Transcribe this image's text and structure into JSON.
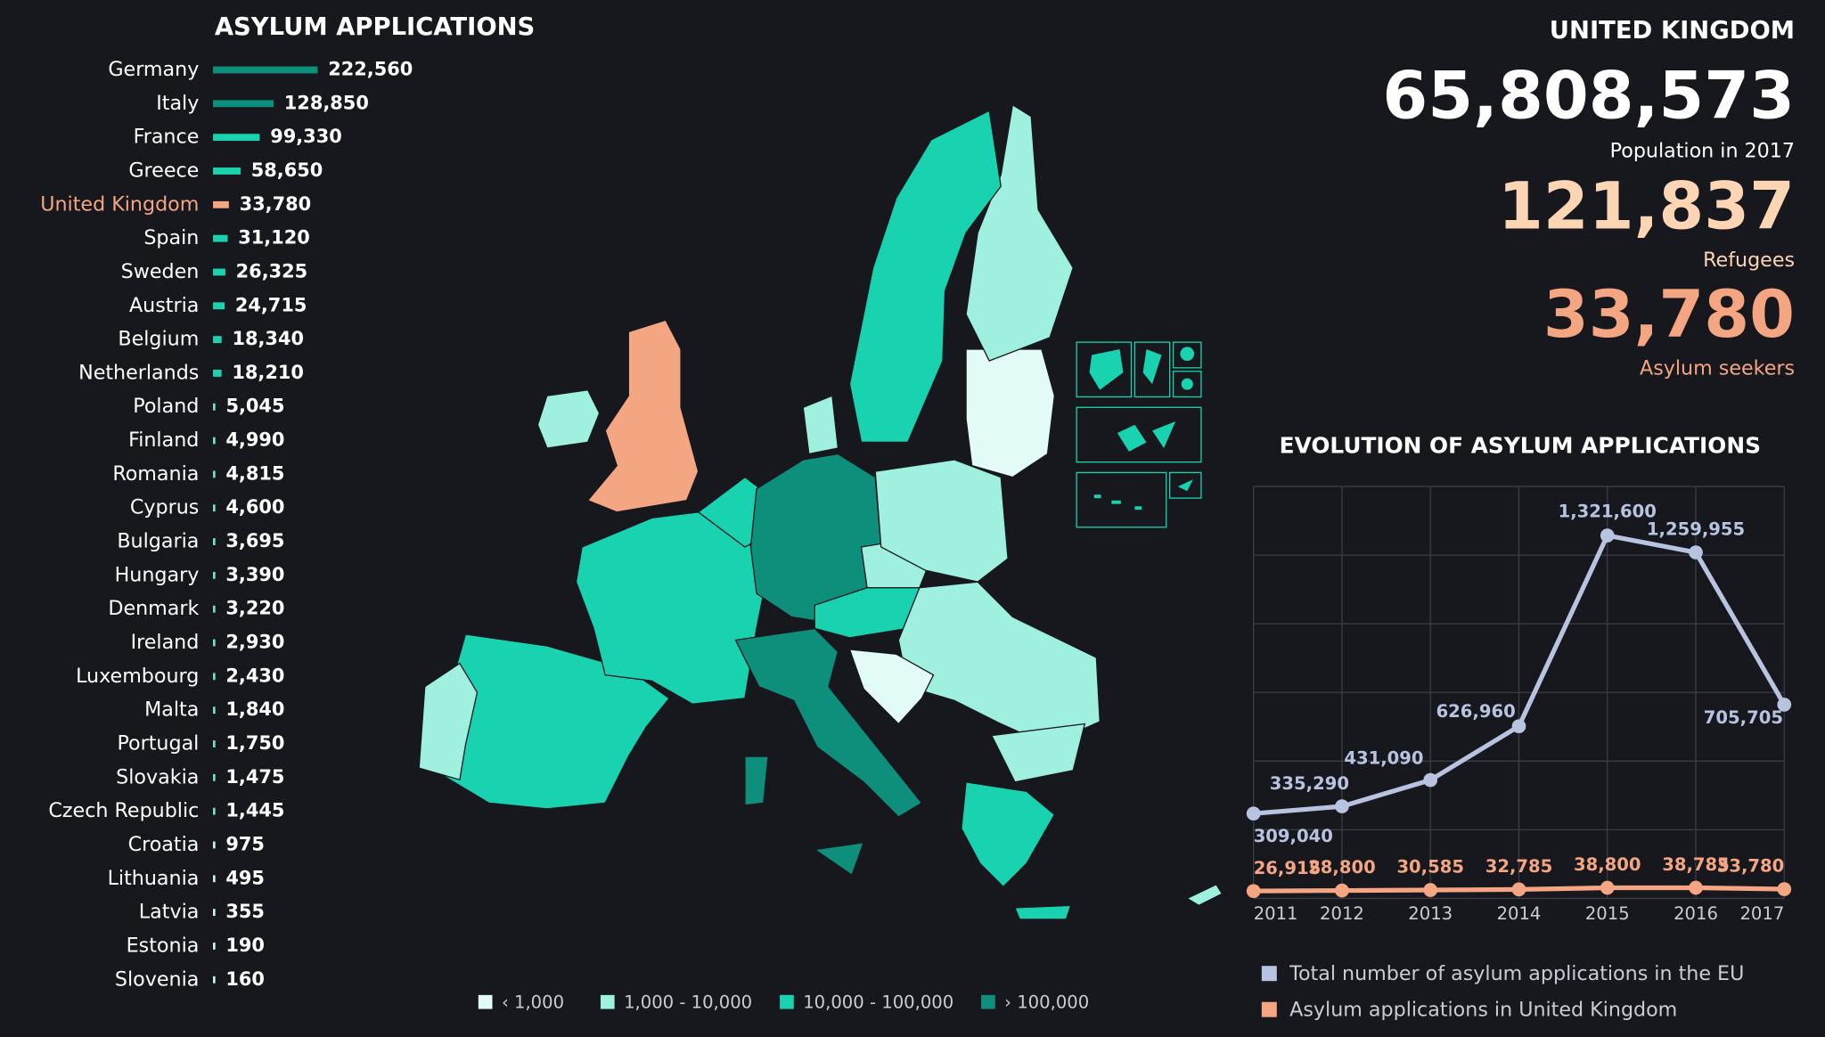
{
  "chart_data": [
    {
      "type": "bar",
      "title": "ASYLUM APPLICATIONS",
      "categories": [
        "Germany",
        "Italy",
        "France",
        "Greece",
        "United Kingdom",
        "Spain",
        "Sweden",
        "Austria",
        "Belgium",
        "Netherlands",
        "Poland",
        "Finland",
        "Romania",
        "Cyprus",
        "Bulgaria",
        "Hungary",
        "Denmark",
        "Ireland",
        "Luxembourg",
        "Malta",
        "Portugal",
        "Slovakia",
        "Czech Republic",
        "Croatia",
        "Lithuania",
        "Latvia",
        "Estonia",
        "Slovenia"
      ],
      "values": [
        222560,
        128850,
        99330,
        58650,
        33780,
        31120,
        26325,
        24715,
        18340,
        18210,
        5045,
        4990,
        4815,
        4600,
        3695,
        3390,
        3220,
        2930,
        2430,
        1840,
        1750,
        1475,
        1445,
        975,
        495,
        355,
        190,
        160
      ],
      "value_labels": [
        "222,560",
        "128,850",
        "99,330",
        "58,650",
        "33,780",
        "31,120",
        "26,325",
        "24,715",
        "18,340",
        "18,210",
        "5,045",
        "4,990",
        "4,815",
        "4,600",
        "3,695",
        "3,390",
        "3,220",
        "2,930",
        "2,430",
        "1,840",
        "1,750",
        "1,475",
        "1,445",
        "975",
        "495",
        "355",
        "190",
        "160"
      ],
      "colors": [
        "#0e8f7b",
        "#0e8f7b",
        "#19d3b0",
        "#19d3b0",
        "#f4a582",
        "#19d3b0",
        "#19d3b0",
        "#19d3b0",
        "#19d3b0",
        "#19d3b0",
        "#6fe6cc",
        "#6fe6cc",
        "#6fe6cc",
        "#6fe6cc",
        "#6fe6cc",
        "#6fe6cc",
        "#6fe6cc",
        "#6fe6cc",
        "#6fe6cc",
        "#6fe6cc",
        "#6fe6cc",
        "#6fe6cc",
        "#6fe6cc",
        "#c6f7ec",
        "#c6f7ec",
        "#c6f7ec",
        "#c6f7ec",
        "#c6f7ec"
      ],
      "highlight_index": 4,
      "xlim": [
        0,
        250000
      ]
    },
    {
      "type": "line",
      "title": "EVOLUTION OF ASYLUM APPLICATIONS",
      "x": [
        2011,
        2012,
        2013,
        2014,
        2015,
        2016,
        2017
      ],
      "xlim": [
        2011,
        2017
      ],
      "xticks": [
        2011,
        2012,
        2013,
        2014,
        2015,
        2016,
        2017
      ],
      "ylim": [
        0,
        1500000
      ],
      "yticks": [
        0,
        250000,
        500000,
        750000,
        1000000,
        1250000,
        1500000
      ],
      "grid": true,
      "series": [
        {
          "name": "Total number of asylum applications in the EU",
          "color": "#b8c3e0",
          "values": [
            309040,
            335290,
            431090,
            626960,
            1321600,
            1259955,
            705705
          ],
          "value_labels": [
            "309,040",
            "335,290",
            "431,090",
            "626,960",
            "1,321,600",
            "1,259,955",
            "705,705"
          ]
        },
        {
          "name": "Asylum applications in United Kingdom",
          "color": "#f4a582",
          "values": [
            26915,
            28800,
            30585,
            32785,
            38800,
            38785,
            33780
          ],
          "value_labels": [
            "26,915",
            "28,800",
            "30,585",
            "32,785",
            "38,800",
            "38,785",
            "33,780"
          ]
        }
      ]
    }
  ],
  "country_panel": {
    "title": "UNITED KINGDOM",
    "population": "65,808,573",
    "population_label": "Population in 2017",
    "refugees": "121,837",
    "refugees_label": "Refugees",
    "asylum_seekers": "33,780",
    "asylum_seekers_label": "Asylum seekers"
  },
  "map": {
    "legend": [
      {
        "label": "‹ 1,000",
        "color": "#e3fbf6"
      },
      {
        "label": "1,000 - 10,000",
        "color": "#9ff0de"
      },
      {
        "label": "10,000 - 100,000",
        "color": "#19d3b0"
      },
      {
        "label": "› 100,000",
        "color": "#0e8f7b"
      }
    ],
    "highlight_color": "#f4a582"
  }
}
